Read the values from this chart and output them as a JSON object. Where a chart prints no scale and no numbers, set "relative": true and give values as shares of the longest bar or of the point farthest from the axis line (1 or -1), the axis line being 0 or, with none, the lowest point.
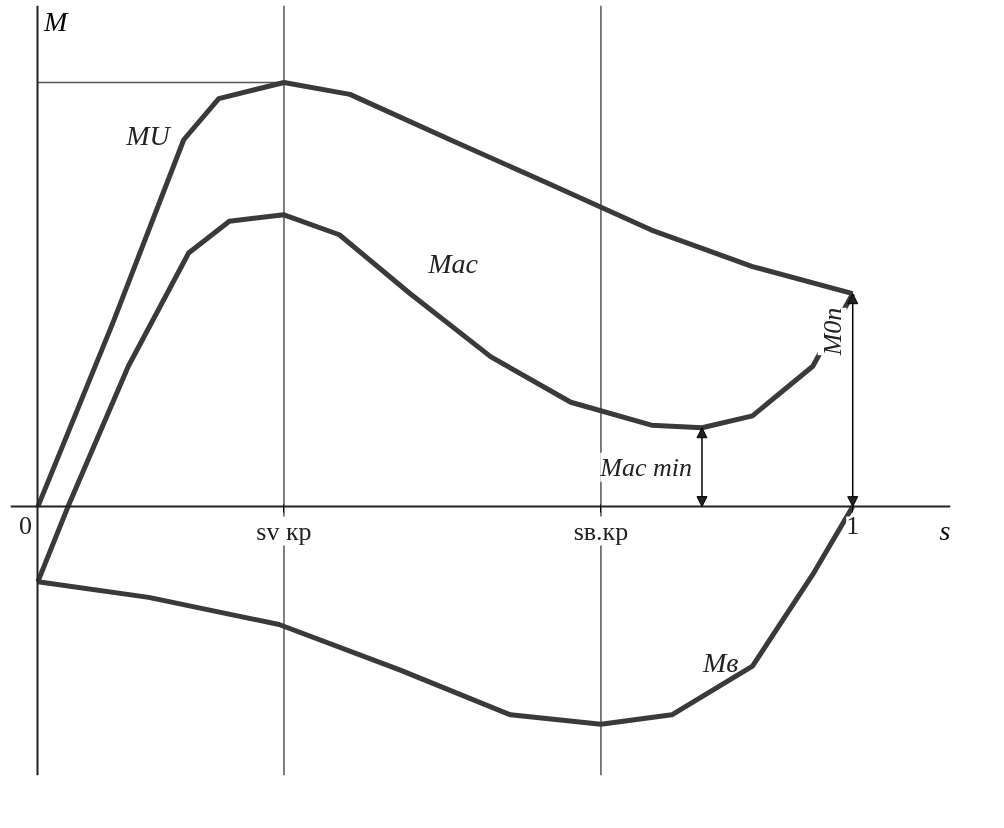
{
  "chart_data": {
    "type": "line",
    "relative": true,
    "xlabel": "s",
    "ylabel": "M",
    "xlim": [
      0,
      1.12
    ],
    "xticks": [
      0,
      {
        "value": 0.302,
        "label": "sv кр"
      },
      {
        "value": 0.691,
        "label": "sв.кр"
      },
      1
    ],
    "grid": false,
    "marker": "none",
    "line_style": "solid",
    "tick_labels": "x",
    "series": [
      {
        "name": "MU",
        "color": "#3a3a3a",
        "x": [
          0,
          0.093,
          0.179,
          0.222,
          0.302,
          0.383,
          0.506,
          0.63,
          0.753,
          0.877,
          1.0
        ],
        "values": [
          0,
          0.438,
          0.865,
          0.962,
          1.0,
          0.972,
          0.865,
          0.759,
          0.652,
          0.566,
          0.502
        ]
      },
      {
        "name": "Mac",
        "color": "#3a3a3a",
        "x": [
          0,
          0.037,
          0.111,
          0.185,
          0.235,
          0.302,
          0.37,
          0.457,
          0.556,
          0.654,
          0.753,
          0.815,
          0.877,
          0.951,
          1.0
        ],
        "values": [
          -0.177,
          0,
          0.331,
          0.598,
          0.673,
          0.688,
          0.641,
          0.502,
          0.353,
          0.246,
          0.192,
          0.186,
          0.214,
          0.331,
          0.502
        ]
      },
      {
        "name": "Mв",
        "color": "#3a3a3a",
        "x": [
          0,
          0.136,
          0.296,
          0.444,
          0.58,
          0.691,
          0.778,
          0.877,
          0.951,
          1.0
        ],
        "values": [
          -0.177,
          -0.214,
          -0.278,
          -0.385,
          -0.491,
          -0.513,
          -0.491,
          -0.376,
          -0.16,
          0
        ]
      }
    ],
    "ref_lines": [
      {
        "axis": "x",
        "value": 0.302,
        "color": "#555555"
      },
      {
        "axis": "x",
        "value": 0.691,
        "color": "#555555"
      },
      {
        "axis": "y",
        "value": 1.0,
        "color": "#555555"
      }
    ],
    "annotations": [
      {
        "text": "Mac min",
        "x": 0.815,
        "y": 0.186
      },
      {
        "text": "M0п",
        "x": 1.0,
        "y": 0.502
      }
    ]
  }
}
